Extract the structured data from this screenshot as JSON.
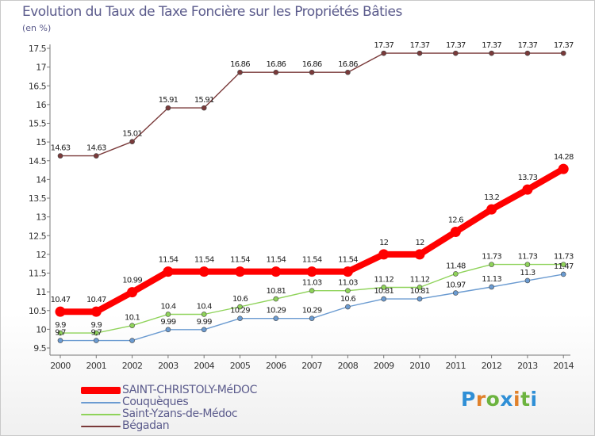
{
  "header": {
    "title": "Evolution du Taux de Taxe Foncière sur les Propriétés Bâties",
    "unit": "(en %)"
  },
  "logo": {
    "letters": [
      "P",
      "r",
      "o",
      "x",
      "i",
      "t",
      "i"
    ],
    "colors": [
      "#2f8fd6",
      "#e0812b",
      "#6cb33f",
      "#2f8fd6",
      "#e0812b",
      "#6cb33f",
      "#2f8fd6"
    ]
  },
  "chart_data": {
    "type": "line",
    "title": "Evolution du Taux de Taxe Foncière sur les Propriétés Bâties",
    "xlabel": "",
    "ylabel": "(en %)",
    "x": [
      2000,
      2001,
      2002,
      2003,
      2004,
      2005,
      2006,
      2007,
      2008,
      2009,
      2010,
      2011,
      2012,
      2013,
      2014
    ],
    "ylim": [
      9.5,
      17.5
    ],
    "yticks": [
      9.5,
      10,
      10.5,
      11,
      11.5,
      12,
      12.5,
      13,
      13.5,
      14,
      14.5,
      15,
      15.5,
      16,
      16.5,
      17,
      17.5
    ],
    "grid": false,
    "legend_position": "bottom-left",
    "series": [
      {
        "name": "SAINT-CHRISTOLY-MéDOC",
        "color": "#ff0000",
        "emphasis": "thick",
        "values": [
          10.47,
          10.47,
          10.99,
          11.54,
          11.54,
          11.54,
          11.54,
          11.54,
          11.54,
          12,
          12,
          12.6,
          13.2,
          13.73,
          14.28
        ],
        "labels": [
          "10.47",
          "10.47",
          "10.99",
          "11.54",
          "11.54",
          "11.54",
          "11.54",
          "11.54",
          "11.54",
          "12",
          "12",
          "12.6",
          "13.2",
          "13.73",
          "14.28"
        ]
      },
      {
        "name": "Couquèques",
        "color": "#6b9bd1",
        "emphasis": "thin",
        "values": [
          9.7,
          9.7,
          9.7,
          9.99,
          9.99,
          10.29,
          10.29,
          10.29,
          10.6,
          10.81,
          10.81,
          10.97,
          11.13,
          11.3,
          11.47
        ],
        "labels": [
          "9.7",
          "9.7",
          "",
          "9.99",
          "9.99",
          "10.29",
          "10.29",
          "10.29",
          "10.6",
          "10.81",
          "10.81",
          "10.97",
          "11.13",
          "11.3",
          "11.47"
        ]
      },
      {
        "name": "Saint-Yzans-de-Médoc",
        "color": "#8fd35a",
        "emphasis": "thin",
        "values": [
          9.9,
          9.9,
          10.1,
          10.4,
          10.4,
          10.6,
          10.81,
          11.03,
          11.03,
          11.12,
          11.12,
          11.48,
          11.73,
          11.73,
          11.73
        ],
        "labels": [
          "9.9",
          "9.9",
          "10.1",
          "10.4",
          "10.4",
          "10.6",
          "10.81",
          "11.03",
          "11.03",
          "11.12",
          "11.12",
          "11.48",
          "11.73",
          "11.73",
          "11.73"
        ]
      },
      {
        "name": "Bégadan",
        "color": "#7a3a3a",
        "emphasis": "thin",
        "values": [
          14.63,
          14.63,
          15.01,
          15.91,
          15.91,
          16.86,
          16.86,
          16.86,
          16.86,
          17.37,
          17.37,
          17.37,
          17.37,
          17.37,
          17.37
        ],
        "labels": [
          "14.63",
          "14.63",
          "15.01",
          "15.91",
          "15.91",
          "16.86",
          "16.86",
          "16.86",
          "16.86",
          "17.37",
          "17.37",
          "17.37",
          "17.37",
          "17.37",
          "17.37"
        ]
      }
    ]
  }
}
